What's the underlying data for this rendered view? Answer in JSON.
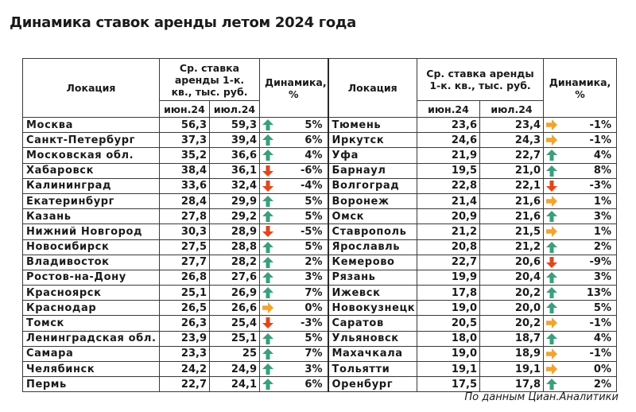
{
  "title": "Динамика ставок аренды летом 2024 года",
  "source": "По данным Циан.Аналитики",
  "colors": {
    "up": "#3a9f7f",
    "down": "#e2471c",
    "flat": "#f0a532"
  },
  "headers": {
    "left": {
      "location": "Локация",
      "rate": "Ср. ставка аренды 1-к. кв., тыс. руб.",
      "dynamics": "Динамика, %",
      "jun": "июн.24",
      "jul": "июл.24"
    },
    "right": {
      "location": "Локация",
      "rate": "Ср. ставка аренды 1-к. кв., тыс. руб.",
      "dynamics": "Динамика, %",
      "jun": "июн.24",
      "jul": "июл.24"
    }
  },
  "left_rows": [
    {
      "city": "Москва",
      "jun": "56,3",
      "jul": "59,3",
      "trend": "up",
      "change": "5%"
    },
    {
      "city": "Санкт-Петербург",
      "jun": "37,3",
      "jul": "39,4",
      "trend": "up",
      "change": "6%"
    },
    {
      "city": "Московская обл.",
      "jun": "35,2",
      "jul": "36,6",
      "trend": "up",
      "change": "4%"
    },
    {
      "city": "Хабаровск",
      "jun": "38,4",
      "jul": "36,1",
      "trend": "down",
      "change": "-6%"
    },
    {
      "city": "Калининград",
      "jun": "33,6",
      "jul": "32,4",
      "trend": "down",
      "change": "-4%"
    },
    {
      "city": "Екатеринбург",
      "jun": "28,4",
      "jul": "29,9",
      "trend": "up",
      "change": "5%"
    },
    {
      "city": "Казань",
      "jun": "27,8",
      "jul": "29,2",
      "trend": "up",
      "change": "5%"
    },
    {
      "city": "Нижний Новгород",
      "jun": "30,3",
      "jul": "28,9",
      "trend": "down",
      "change": "-5%"
    },
    {
      "city": "Новосибирск",
      "jun": "27,5",
      "jul": "28,8",
      "trend": "up",
      "change": "5%"
    },
    {
      "city": "Владивосток",
      "jun": "27,7",
      "jul": "28,2",
      "trend": "up",
      "change": "2%"
    },
    {
      "city": "Ростов-на-Дону",
      "jun": "26,8",
      "jul": "27,6",
      "trend": "up",
      "change": "3%"
    },
    {
      "city": "Красноярск",
      "jun": "25,1",
      "jul": "26,9",
      "trend": "up",
      "change": "7%"
    },
    {
      "city": "Краснодар",
      "jun": "26,5",
      "jul": "26,6",
      "trend": "flat",
      "change": "0%"
    },
    {
      "city": "Томск",
      "jun": "26,3",
      "jul": "25,4",
      "trend": "down",
      "change": "-3%"
    },
    {
      "city": "Ленинградская обл.",
      "jun": "23,9",
      "jul": "25,1",
      "trend": "up",
      "change": "5%"
    },
    {
      "city": "Самара",
      "jun": "23,3",
      "jul": "25",
      "trend": "up",
      "change": "7%"
    },
    {
      "city": "Челябинск",
      "jun": "24,2",
      "jul": "24,9",
      "trend": "up",
      "change": "3%"
    },
    {
      "city": "Пермь",
      "jun": "22,7",
      "jul": "24,1",
      "trend": "up",
      "change": "6%"
    }
  ],
  "right_rows": [
    {
      "city": "Тюмень",
      "jun": "23,6",
      "jul": "23,4",
      "trend": "flat",
      "change": "-1%"
    },
    {
      "city": "Иркутск",
      "jun": "24,6",
      "jul": "24,3",
      "trend": "flat",
      "change": "-1%"
    },
    {
      "city": "Уфа",
      "jun": "21,9",
      "jul": "22,7",
      "trend": "up",
      "change": "4%"
    },
    {
      "city": "Барнаул",
      "jun": "19,5",
      "jul": "21,0",
      "trend": "up",
      "change": "8%"
    },
    {
      "city": "Волгоград",
      "jun": "22,8",
      "jul": "22,1",
      "trend": "down",
      "change": "-3%"
    },
    {
      "city": "Воронеж",
      "jun": "21,4",
      "jul": "21,6",
      "trend": "flat",
      "change": "1%"
    },
    {
      "city": "Омск",
      "jun": "20,9",
      "jul": "21,6",
      "trend": "up",
      "change": "3%"
    },
    {
      "city": "Ставрополь",
      "jun": "21,2",
      "jul": "21,5",
      "trend": "flat",
      "change": "1%"
    },
    {
      "city": "Ярославль",
      "jun": "20,8",
      "jul": "21,2",
      "trend": "up",
      "change": "2%"
    },
    {
      "city": "Кемерово",
      "jun": "22,7",
      "jul": "20,6",
      "trend": "down",
      "change": "-9%"
    },
    {
      "city": "Рязань",
      "jun": "19,9",
      "jul": "20,4",
      "trend": "up",
      "change": "3%"
    },
    {
      "city": "Ижевск",
      "jun": "17,8",
      "jul": "20,2",
      "trend": "up",
      "change": "13%"
    },
    {
      "city": "Новокузнецк",
      "jun": "19,0",
      "jul": "20,0",
      "trend": "up",
      "change": "5%"
    },
    {
      "city": "Саратов",
      "jun": "20,5",
      "jul": "20,2",
      "trend": "flat",
      "change": "-1%"
    },
    {
      "city": "Ульяновск",
      "jun": "18,0",
      "jul": "18,7",
      "trend": "up",
      "change": "4%"
    },
    {
      "city": "Махачкала",
      "jun": "19,0",
      "jul": "18,9",
      "trend": "flat",
      "change": "-1%"
    },
    {
      "city": "Тольятти",
      "jun": "19,1",
      "jul": "19,1",
      "trend": "flat",
      "change": "0%"
    },
    {
      "city": "Оренбург",
      "jun": "17,5",
      "jul": "17,8",
      "trend": "up",
      "change": "2%"
    }
  ]
}
